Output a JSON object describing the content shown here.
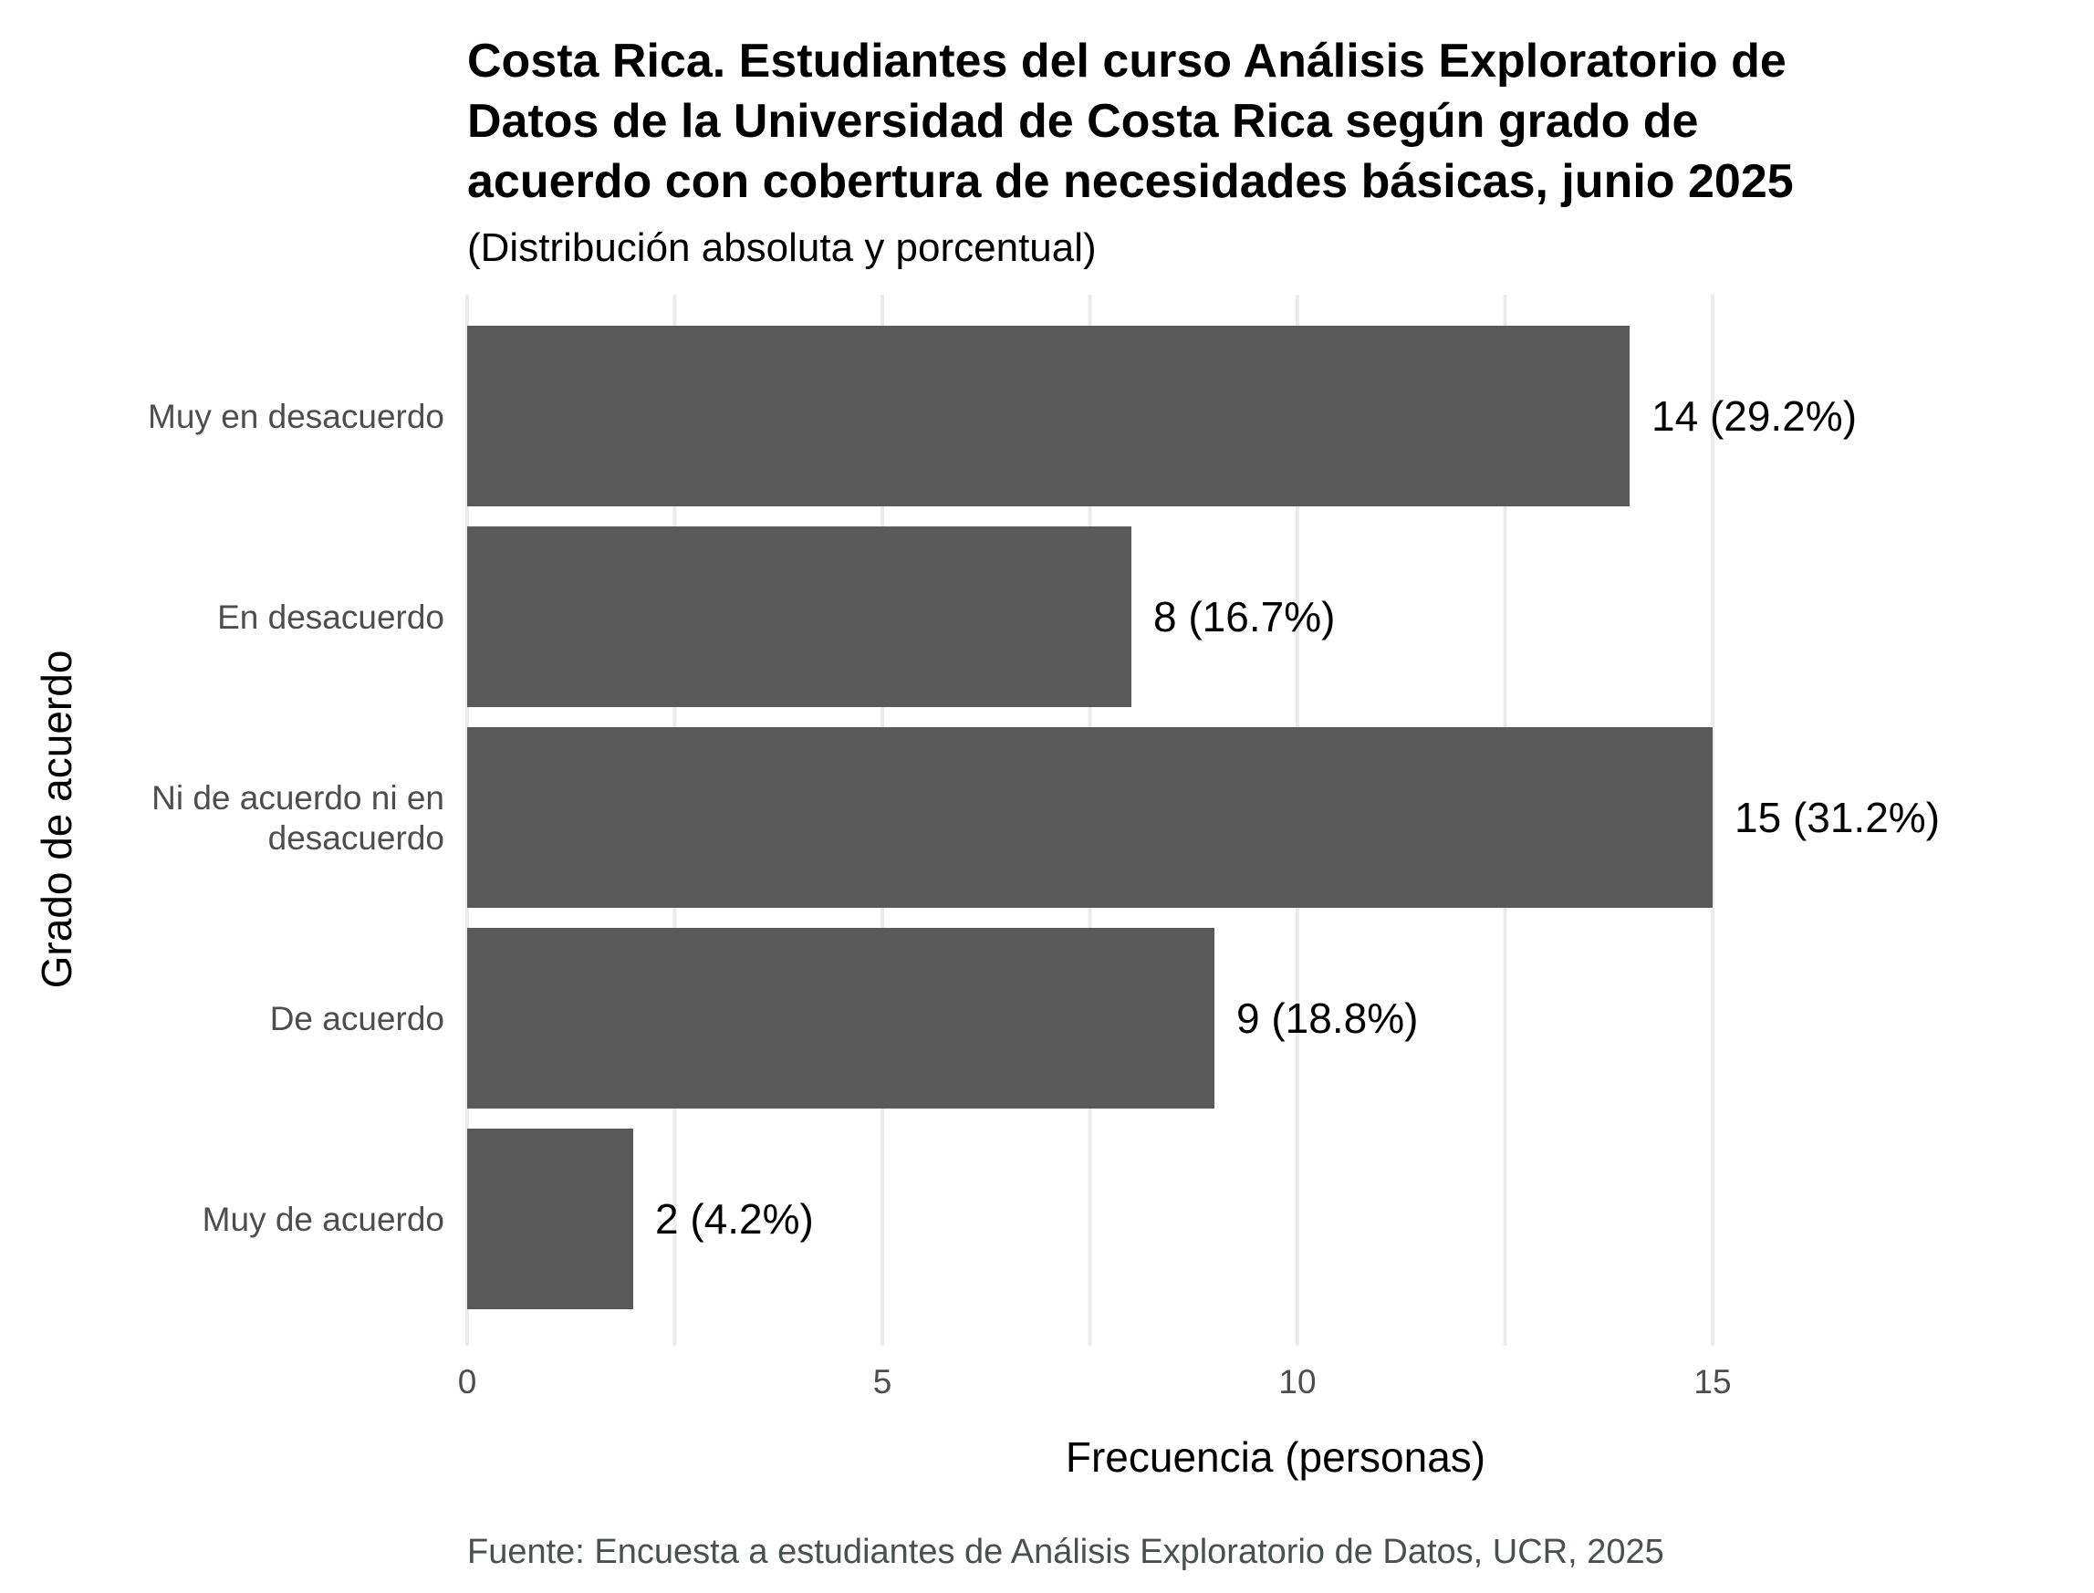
{
  "chart_data": {
    "type": "bar",
    "orientation": "horizontal",
    "title_lines": [
      "Costa Rica. Estudiantes del curso Análisis Exploratorio de",
      "Datos de la Universidad de Costa Rica según grado de",
      "acuerdo con cobertura de necesidades básicas, junio 2025"
    ],
    "subtitle": "(Distribución absoluta y porcentual)",
    "xlabel": "Frecuencia (personas)",
    "ylabel": "Grado de acuerdo",
    "caption": "Fuente: Encuesta a estudiantes de Análisis Exploratorio de Datos, UCR, 2025",
    "categories": [
      [
        "Muy en desacuerdo"
      ],
      [
        "En desacuerdo"
      ],
      [
        "Ni de acuerdo ni en",
        "desacuerdo"
      ],
      [
        "De acuerdo"
      ],
      [
        "Muy de acuerdo"
      ]
    ],
    "values": [
      14,
      8,
      15,
      9,
      2
    ],
    "data_labels": [
      "14 (29.2%)",
      "8 (16.7%)",
      "15 (31.2%)",
      "9 (18.8%)",
      "2 (4.2%)"
    ],
    "x_ticks": [
      0,
      5,
      10,
      15
    ],
    "xlim": [
      0,
      18.4
    ],
    "grid": true,
    "legend": "none",
    "bar_color": "#595959",
    "grid_color": "#ebebeb"
  }
}
